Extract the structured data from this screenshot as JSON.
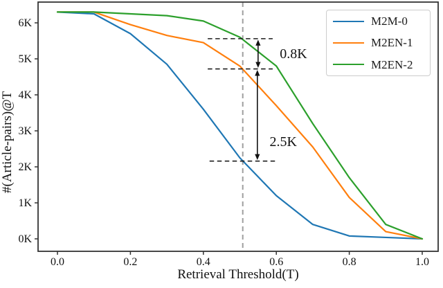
{
  "figure": {
    "background": "#ffffff",
    "plot_border_color": "#333333"
  },
  "chart_data": {
    "type": "line",
    "title": "",
    "xlabel": "Retrieval Threshold(T)",
    "ylabel": "#(Article-pairs)@T",
    "xlim": [
      -0.053,
      1.044
    ],
    "ylim": [
      -0.35,
      6.58
    ],
    "grid": false,
    "legend_position": "upper right",
    "x": [
      0.0,
      0.1,
      0.2,
      0.3,
      0.4,
      0.5,
      0.6,
      0.7,
      0.8,
      0.9,
      1.0
    ],
    "series": [
      {
        "name": "M2M-0",
        "color": "#1f77b4",
        "values": [
          6.3,
          6.25,
          5.7,
          4.85,
          3.6,
          2.25,
          1.2,
          0.4,
          0.08,
          0.04,
          0.0
        ]
      },
      {
        "name": "M2EN-1",
        "color": "#ff7f0e",
        "values": [
          6.3,
          6.3,
          5.95,
          5.65,
          5.45,
          4.8,
          3.7,
          2.55,
          1.15,
          0.2,
          0.0
        ]
      },
      {
        "name": "M2EN-2",
        "color": "#2ca02c",
        "values": [
          6.3,
          6.3,
          6.25,
          6.2,
          6.05,
          5.6,
          4.8,
          3.2,
          1.7,
          0.4,
          0.0
        ]
      }
    ],
    "x_ticks": [
      {
        "v": 0.0,
        "label": "0.0"
      },
      {
        "v": 0.2,
        "label": "0.2"
      },
      {
        "v": 0.4,
        "label": "0.4"
      },
      {
        "v": 0.6,
        "label": "0.6"
      },
      {
        "v": 0.8,
        "label": "0.8"
      },
      {
        "v": 1.0,
        "label": "1.0"
      }
    ],
    "y_ticks": [
      {
        "v": 0,
        "label": "0K"
      },
      {
        "v": 1,
        "label": "1K"
      },
      {
        "v": 2,
        "label": "2K"
      },
      {
        "v": 3,
        "label": "3K"
      },
      {
        "v": 4,
        "label": "4K"
      },
      {
        "v": 5,
        "label": "5K"
      },
      {
        "v": 6,
        "label": "6K"
      }
    ],
    "vline": {
      "x": 0.508,
      "color": "#9e9e9e",
      "style": "dashed"
    },
    "hlines": [
      {
        "y": 5.56,
        "x1": 0.412,
        "x2": 0.59,
        "color": "#1c1c1c",
        "style": "dashed"
      },
      {
        "y": 4.72,
        "x1": 0.412,
        "x2": 0.59,
        "color": "#1c1c1c",
        "style": "dashed"
      },
      {
        "y": 2.16,
        "x1": 0.417,
        "x2": 0.598,
        "color": "#1c1c1c",
        "style": "dashed"
      }
    ],
    "arrows": [
      {
        "x": 0.55,
        "y1": 5.56,
        "y2": 4.72,
        "heads": "both"
      },
      {
        "x": 0.548,
        "y1": 4.72,
        "y2": 2.16,
        "heads": "both"
      }
    ],
    "annotations": [
      {
        "text": "0.8K",
        "x": 0.647,
        "y": 5.13
      },
      {
        "text": "2.5K",
        "x": 0.619,
        "y": 2.69
      }
    ]
  }
}
